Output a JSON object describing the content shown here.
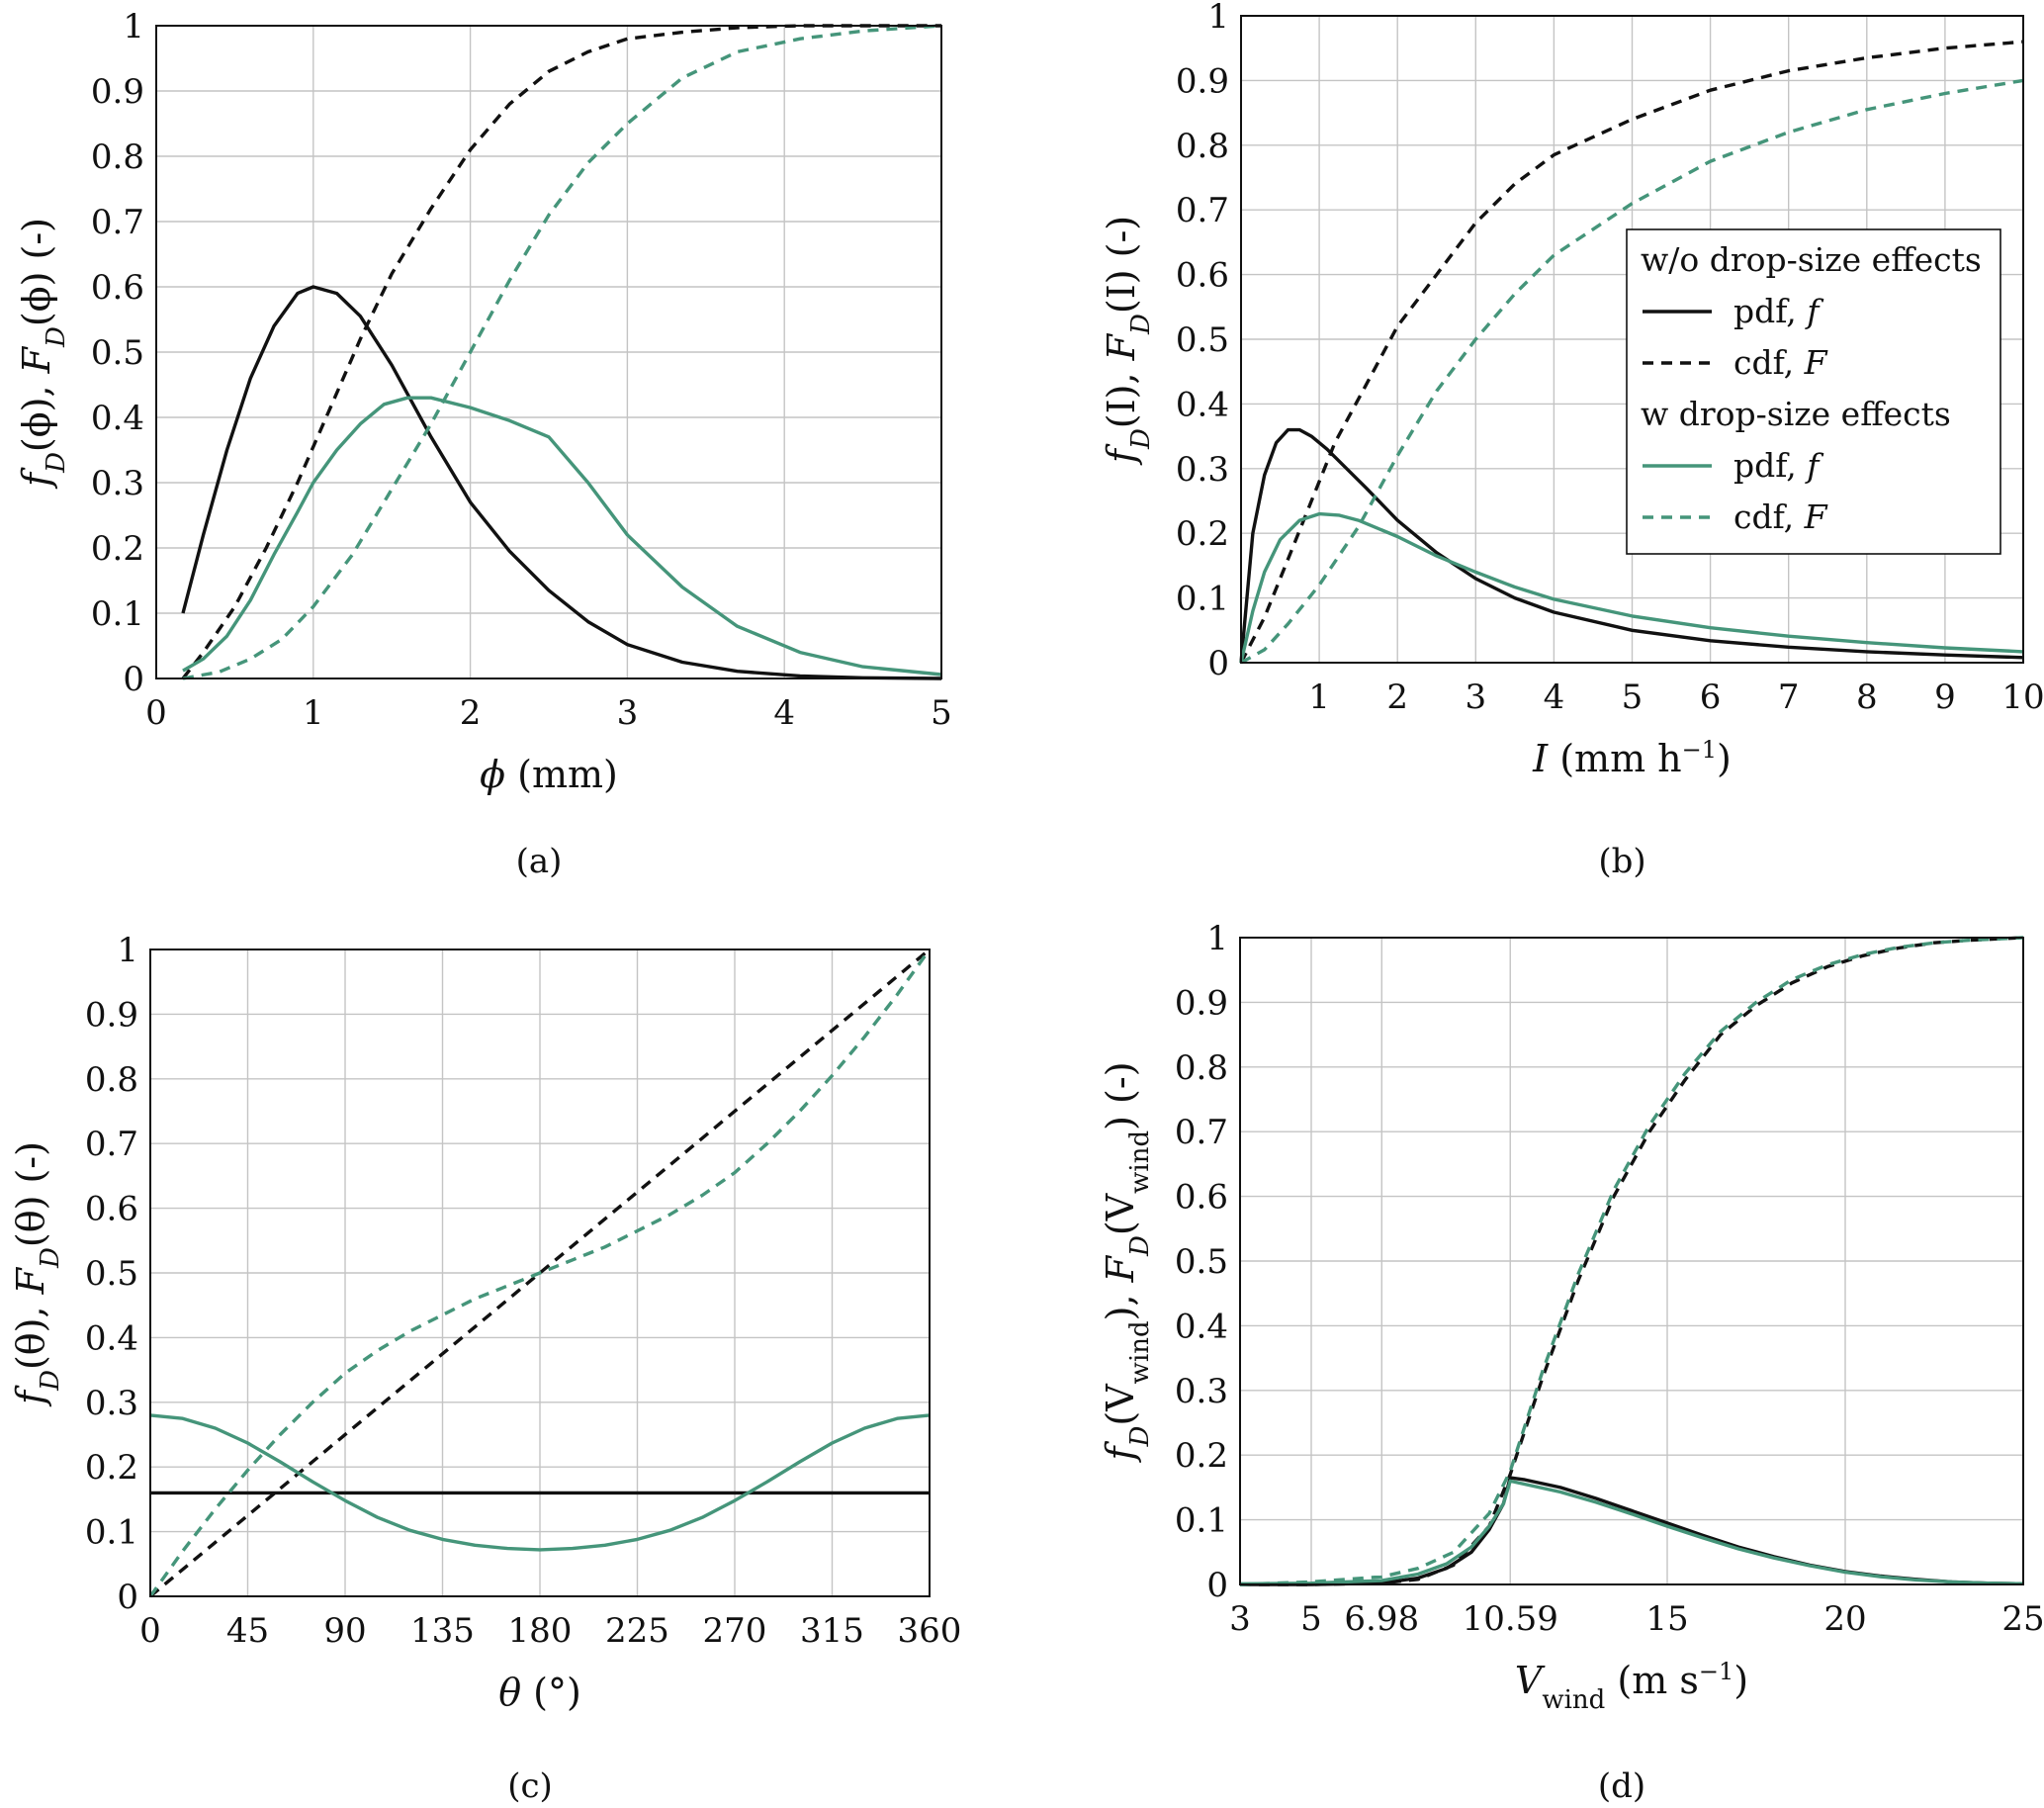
{
  "colors": {
    "black": "#111111",
    "green": "#45957a",
    "grid": "#c4c4c4"
  },
  "legend": {
    "heading_without": "w/o drop-size effects",
    "heading_with": "w drop-size effects",
    "pdf_label": "pdf, ",
    "pdf_symbol": "f",
    "cdf_label": "cdf, ",
    "cdf_symbol": "F"
  },
  "chart_data": [
    {
      "type": "line",
      "caption": "(a)",
      "xlabel": "ϕ (mm)",
      "ylabel": "f_D(ϕ), F_D(ϕ) (-)",
      "ylabel_parts": [
        "f",
        "D",
        "(ϕ), ",
        "F",
        "D",
        "(ϕ) (-)"
      ],
      "xlabel_parts": [
        "ϕ",
        " (mm)"
      ],
      "xlim": [
        0,
        5
      ],
      "ylim": [
        0,
        1
      ],
      "xticks": [
        0,
        1,
        2,
        3,
        4,
        5
      ],
      "xtick_labels": [
        "0",
        "1",
        "2",
        "3",
        "4",
        "5"
      ],
      "yticks": [
        0,
        0.1,
        0.2,
        0.3,
        0.4,
        0.5,
        0.6,
        0.7,
        0.8,
        0.9,
        1
      ],
      "ytick_labels": [
        "0",
        "0.1",
        "0.2",
        "0.3",
        "0.4",
        "0.5",
        "0.6",
        "0.7",
        "0.8",
        "0.9",
        "1"
      ],
      "series": [
        {
          "name": "w/o drop-size effects pdf",
          "color": "black",
          "dash": false,
          "x": [
            0.17,
            0.3,
            0.45,
            0.6,
            0.75,
            0.9,
            1.0,
            1.15,
            1.3,
            1.5,
            1.75,
            2.0,
            2.25,
            2.5,
            2.75,
            3.0,
            3.35,
            3.7,
            4.1,
            4.5,
            5.0
          ],
          "y": [
            0.1,
            0.22,
            0.35,
            0.46,
            0.54,
            0.59,
            0.6,
            0.59,
            0.555,
            0.48,
            0.37,
            0.27,
            0.195,
            0.135,
            0.087,
            0.052,
            0.025,
            0.011,
            0.004,
            0.001,
            0.0
          ]
        },
        {
          "name": "w/o drop-size effects cdf",
          "color": "black",
          "dash": true,
          "x": [
            0.17,
            0.3,
            0.5,
            0.7,
            0.9,
            1.1,
            1.3,
            1.5,
            1.75,
            2.0,
            2.25,
            2.5,
            2.75,
            3.0,
            3.35,
            3.7,
            4.1,
            4.5,
            5.0
          ],
          "y": [
            0.0,
            0.04,
            0.11,
            0.2,
            0.3,
            0.41,
            0.52,
            0.62,
            0.72,
            0.81,
            0.88,
            0.93,
            0.96,
            0.98,
            0.99,
            0.997,
            1.0,
            1.0,
            1.0
          ]
        },
        {
          "name": "w drop-size effects pdf",
          "color": "green",
          "dash": false,
          "x": [
            0.17,
            0.3,
            0.45,
            0.6,
            0.75,
            0.9,
            1.0,
            1.15,
            1.3,
            1.45,
            1.6,
            1.75,
            2.0,
            2.25,
            2.5,
            2.75,
            3.0,
            3.35,
            3.7,
            4.1,
            4.5,
            5.0
          ],
          "y": [
            0.012,
            0.03,
            0.065,
            0.12,
            0.19,
            0.255,
            0.3,
            0.35,
            0.39,
            0.42,
            0.43,
            0.43,
            0.415,
            0.395,
            0.37,
            0.3,
            0.22,
            0.14,
            0.08,
            0.04,
            0.018,
            0.006
          ]
        },
        {
          "name": "w drop-size effects cdf",
          "color": "green",
          "dash": true,
          "x": [
            0.17,
            0.4,
            0.6,
            0.8,
            1.0,
            1.25,
            1.5,
            1.75,
            2.0,
            2.25,
            2.5,
            2.75,
            3.0,
            3.35,
            3.7,
            4.1,
            4.5,
            5.0
          ],
          "y": [
            0.0,
            0.01,
            0.03,
            0.06,
            0.11,
            0.19,
            0.29,
            0.39,
            0.5,
            0.61,
            0.71,
            0.79,
            0.85,
            0.92,
            0.96,
            0.98,
            0.992,
            1.0
          ]
        }
      ]
    },
    {
      "type": "line",
      "caption": "(b)",
      "xlabel": "I (mm h⁻¹)",
      "ylabel": "f_D(I), F_D(I) (-)",
      "ylabel_parts": [
        "f",
        "D",
        "(I), ",
        "F",
        "D",
        "(I) (-)"
      ],
      "xlabel_parts": [
        "I",
        " (mm h",
        "−1",
        ")"
      ],
      "xlim": [
        0,
        10
      ],
      "ylim": [
        0,
        1
      ],
      "xticks": [
        1,
        2,
        3,
        4,
        5,
        6,
        7,
        8,
        9,
        10
      ],
      "xtick_labels": [
        "1",
        "2",
        "3",
        "4",
        "5",
        "6",
        "7",
        "8",
        "9",
        "10"
      ],
      "yticks": [
        0,
        0.1,
        0.2,
        0.3,
        0.4,
        0.5,
        0.6,
        0.7,
        0.8,
        0.9,
        1
      ],
      "ytick_labels": [
        "0",
        "0.1",
        "0.2",
        "0.3",
        "0.4",
        "0.5",
        "0.6",
        "0.7",
        "0.8",
        "0.9",
        "1"
      ],
      "legend_position": "right-middle",
      "series": [
        {
          "name": "w/o drop-size effects pdf",
          "color": "black",
          "dash": false,
          "x": [
            0.0,
            0.15,
            0.3,
            0.45,
            0.6,
            0.75,
            0.9,
            1.1,
            1.35,
            1.6,
            2.0,
            2.5,
            3.0,
            3.5,
            4.0,
            5.0,
            6.0,
            7.0,
            8.0,
            9.0,
            10.0
          ],
          "y": [
            0.0,
            0.2,
            0.29,
            0.34,
            0.36,
            0.36,
            0.35,
            0.33,
            0.3,
            0.27,
            0.22,
            0.17,
            0.13,
            0.1,
            0.078,
            0.05,
            0.034,
            0.024,
            0.017,
            0.012,
            0.008
          ]
        },
        {
          "name": "w/o drop-size effects cdf",
          "color": "black",
          "dash": true,
          "x": [
            0.0,
            0.3,
            0.6,
            0.9,
            1.2,
            1.6,
            2.0,
            2.5,
            3.0,
            3.5,
            4.0,
            5.0,
            6.0,
            7.0,
            8.0,
            9.0,
            10.0
          ],
          "y": [
            0.0,
            0.07,
            0.16,
            0.25,
            0.34,
            0.43,
            0.52,
            0.6,
            0.68,
            0.74,
            0.785,
            0.84,
            0.885,
            0.915,
            0.935,
            0.95,
            0.96
          ]
        },
        {
          "name": "w drop-size effects pdf",
          "color": "green",
          "dash": false,
          "x": [
            0.0,
            0.15,
            0.3,
            0.5,
            0.75,
            1.0,
            1.25,
            1.5,
            2.0,
            2.5,
            3.0,
            3.5,
            4.0,
            5.0,
            6.0,
            7.0,
            8.0,
            9.0,
            10.0
          ],
          "y": [
            0.0,
            0.08,
            0.14,
            0.19,
            0.22,
            0.23,
            0.228,
            0.22,
            0.195,
            0.165,
            0.14,
            0.117,
            0.098,
            0.072,
            0.054,
            0.041,
            0.031,
            0.023,
            0.017
          ]
        },
        {
          "name": "w drop-size effects cdf",
          "color": "green",
          "dash": true,
          "x": [
            0.0,
            0.3,
            0.6,
            1.0,
            1.5,
            2.0,
            2.5,
            3.0,
            3.5,
            4.0,
            5.0,
            6.0,
            7.0,
            8.0,
            9.0,
            10.0
          ],
          "y": [
            0.0,
            0.02,
            0.06,
            0.12,
            0.21,
            0.32,
            0.42,
            0.5,
            0.57,
            0.63,
            0.71,
            0.775,
            0.82,
            0.855,
            0.88,
            0.9
          ]
        }
      ]
    },
    {
      "type": "line",
      "caption": "(c)",
      "xlabel": "θ (°)",
      "ylabel": "f_D(θ), F_D(θ) (-)",
      "ylabel_parts": [
        "f",
        "D",
        "(θ), ",
        "F",
        "D",
        "(θ) (-)"
      ],
      "xlabel_parts": [
        "θ",
        " (°)"
      ],
      "xlim": [
        0,
        360
      ],
      "ylim": [
        0,
        1
      ],
      "xticks": [
        0,
        45,
        90,
        135,
        180,
        225,
        270,
        315,
        360
      ],
      "xtick_labels": [
        "0",
        "45",
        "90",
        "135",
        "180",
        "225",
        "270",
        "315",
        "360"
      ],
      "yticks": [
        0,
        0.1,
        0.2,
        0.3,
        0.4,
        0.5,
        0.6,
        0.7,
        0.8,
        0.9,
        1
      ],
      "ytick_labels": [
        "0",
        "0.1",
        "0.2",
        "0.3",
        "0.4",
        "0.5",
        "0.6",
        "0.7",
        "0.8",
        "0.9",
        "1"
      ],
      "series": [
        {
          "name": "w/o drop-size effects pdf",
          "color": "black",
          "dash": false,
          "x": [
            0,
            360
          ],
          "y": [
            0.16,
            0.16
          ]
        },
        {
          "name": "w/o drop-size effects cdf",
          "color": "black",
          "dash": true,
          "x": [
            0,
            360
          ],
          "y": [
            0.0,
            1.0
          ]
        },
        {
          "name": "w drop-size effects pdf",
          "color": "green",
          "dash": false,
          "x": [
            0,
            15,
            30,
            45,
            60,
            75,
            90,
            105,
            120,
            135,
            150,
            165,
            180,
            195,
            210,
            225,
            240,
            255,
            270,
            285,
            300,
            315,
            330,
            345,
            360
          ],
          "y": [
            0.28,
            0.275,
            0.26,
            0.237,
            0.208,
            0.177,
            0.148,
            0.122,
            0.102,
            0.088,
            0.079,
            0.074,
            0.072,
            0.074,
            0.079,
            0.088,
            0.102,
            0.122,
            0.148,
            0.177,
            0.208,
            0.237,
            0.26,
            0.275,
            0.28
          ]
        },
        {
          "name": "w drop-size effects cdf",
          "color": "green",
          "dash": true,
          "x": [
            0,
            15,
            30,
            45,
            60,
            75,
            90,
            105,
            120,
            135,
            150,
            165,
            180,
            195,
            210,
            225,
            240,
            255,
            270,
            285,
            300,
            315,
            330,
            345,
            360
          ],
          "y": [
            0.0,
            0.07,
            0.135,
            0.195,
            0.25,
            0.3,
            0.345,
            0.38,
            0.41,
            0.435,
            0.46,
            0.48,
            0.5,
            0.52,
            0.54,
            0.565,
            0.59,
            0.62,
            0.655,
            0.7,
            0.75,
            0.805,
            0.865,
            0.93,
            1.0
          ]
        }
      ]
    },
    {
      "type": "line",
      "caption": "(d)",
      "xlabel": "V_wind (m s⁻¹)",
      "ylabel": "f_D(V_wind), F_D(V_wind) (-)",
      "ylabel_parts": [
        "f",
        "D",
        "(V",
        "wind",
        "), ",
        "F",
        "D",
        "(V",
        "wind",
        ") (-)"
      ],
      "xlabel_parts": [
        "V",
        "wind",
        " (m s",
        "−1",
        ")"
      ],
      "xlim": [
        3,
        25
      ],
      "ylim": [
        0,
        1
      ],
      "xticks": [
        3,
        5,
        6.98,
        10.59,
        15,
        20,
        25
      ],
      "xtick_labels": [
        "3",
        "5",
        "6.98",
        "10.59",
        "15",
        "20",
        "25"
      ],
      "grid_x": [
        3,
        5,
        6.98,
        10.59,
        15,
        20,
        25
      ],
      "yticks": [
        0,
        0.1,
        0.2,
        0.3,
        0.4,
        0.5,
        0.6,
        0.7,
        0.8,
        0.9,
        1
      ],
      "ytick_labels": [
        "0",
        "0.1",
        "0.2",
        "0.3",
        "0.4",
        "0.5",
        "0.6",
        "0.7",
        "0.8",
        "0.9",
        "1"
      ],
      "series": [
        {
          "name": "w/o drop-size effects pdf",
          "color": "black",
          "dash": false,
          "x": [
            3,
            5,
            6.98,
            8,
            8.8,
            9.5,
            10.0,
            10.4,
            10.59,
            11,
            12,
            13,
            14,
            15,
            16,
            17,
            18,
            19,
            20,
            21,
            22,
            23,
            24,
            25
          ],
          "y": [
            0.0,
            0.0,
            0.002,
            0.01,
            0.025,
            0.05,
            0.085,
            0.125,
            0.165,
            0.162,
            0.15,
            0.133,
            0.114,
            0.095,
            0.076,
            0.058,
            0.043,
            0.03,
            0.02,
            0.013,
            0.008,
            0.004,
            0.002,
            0.001
          ]
        },
        {
          "name": "w/o drop-size effects cdf",
          "color": "black",
          "dash": true,
          "x": [
            3,
            5,
            6.98,
            8,
            9,
            10,
            10.59,
            11.5,
            12.5,
            13.5,
            14.5,
            15.5,
            16.5,
            17.5,
            18.5,
            19.5,
            20.5,
            21.5,
            22.5,
            23.5,
            25
          ],
          "y": [
            0.0,
            0.0,
            0.002,
            0.008,
            0.03,
            0.09,
            0.17,
            0.32,
            0.47,
            0.6,
            0.7,
            0.78,
            0.85,
            0.895,
            0.93,
            0.955,
            0.972,
            0.984,
            0.992,
            0.996,
            1.0
          ]
        },
        {
          "name": "w drop-size effects pdf",
          "color": "green",
          "dash": false,
          "x": [
            3,
            5,
            6.98,
            8,
            8.8,
            9.5,
            10.0,
            10.4,
            10.59,
            11,
            12,
            13,
            14,
            15,
            16,
            17,
            18,
            19,
            20,
            21,
            22,
            23,
            24,
            25
          ],
          "y": [
            0.001,
            0.002,
            0.006,
            0.016,
            0.032,
            0.058,
            0.09,
            0.125,
            0.16,
            0.155,
            0.143,
            0.127,
            0.109,
            0.09,
            0.072,
            0.055,
            0.041,
            0.029,
            0.019,
            0.012,
            0.007,
            0.004,
            0.002,
            0.001
          ]
        },
        {
          "name": "w drop-size effects cdf",
          "color": "green",
          "dash": true,
          "x": [
            3,
            5,
            6.98,
            8,
            9,
            10,
            10.59,
            11.5,
            12.5,
            13.5,
            14.5,
            15.5,
            16.5,
            17.5,
            18.5,
            19.5,
            20.5,
            21.5,
            22.5,
            23.5,
            25
          ],
          "y": [
            0.0,
            0.004,
            0.012,
            0.025,
            0.05,
            0.11,
            0.175,
            0.33,
            0.48,
            0.61,
            0.71,
            0.79,
            0.855,
            0.9,
            0.935,
            0.958,
            0.974,
            0.985,
            0.992,
            0.996,
            1.0
          ]
        }
      ]
    }
  ]
}
